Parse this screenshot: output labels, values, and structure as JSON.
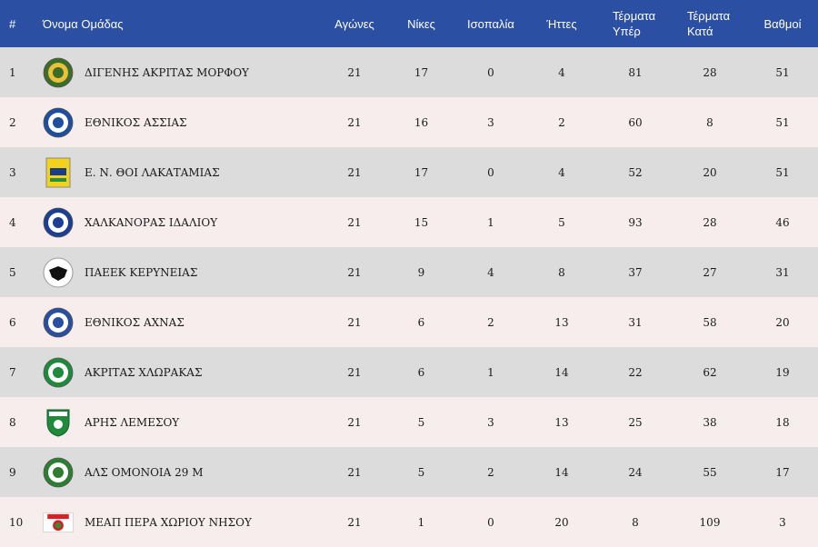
{
  "header": {
    "rank": "#",
    "team": "Όνομα Ομάδας",
    "played": "Αγώνες",
    "wins": "Νίκες",
    "draws": "Ισοπαλία",
    "losses": "Ήττες",
    "gf_line1": "Τέρματα",
    "gf_line2": "Υπέρ",
    "ga_line1": "Τέρματα",
    "ga_line2": "Κατά",
    "points": "Βαθμοί"
  },
  "rows": [
    {
      "rank": "1",
      "team": "ΔΙΓΕΝΗΣ ΑΚΡΙΤΑΣ ΜΟΡΦΟΥ",
      "played": "21",
      "wins": "17",
      "draws": "0",
      "losses": "4",
      "gf": "81",
      "ga": "28",
      "points": "51"
    },
    {
      "rank": "2",
      "team": "ΕΘΝΙΚΟΣ ΑΣΣΙΑΣ",
      "played": "21",
      "wins": "16",
      "draws": "3",
      "losses": "2",
      "gf": "60",
      "ga": "8",
      "points": "51"
    },
    {
      "rank": "3",
      "team": "Ε. Ν. ΘΟΙ ΛΑΚΑΤΑΜΙΑΣ",
      "played": "21",
      "wins": "17",
      "draws": "0",
      "losses": "4",
      "gf": "52",
      "ga": "20",
      "points": "51"
    },
    {
      "rank": "4",
      "team": "ΧΑΛΚΑΝΟΡΑΣ ΙΔΑΛΙΟΥ",
      "played": "21",
      "wins": "15",
      "draws": "1",
      "losses": "5",
      "gf": "93",
      "ga": "28",
      "points": "46"
    },
    {
      "rank": "5",
      "team": "ΠΑΕΕΚ ΚΕΡΥΝΕΙΑΣ",
      "played": "21",
      "wins": "9",
      "draws": "4",
      "losses": "8",
      "gf": "37",
      "ga": "27",
      "points": "31"
    },
    {
      "rank": "6",
      "team": "ΕΘΝΙΚΟΣ ΑΧΝΑΣ",
      "played": "21",
      "wins": "6",
      "draws": "2",
      "losses": "13",
      "gf": "31",
      "ga": "58",
      "points": "20"
    },
    {
      "rank": "7",
      "team": "ΑΚΡΙΤΑΣ ΧΛΩΡΑΚΑΣ",
      "played": "21",
      "wins": "6",
      "draws": "1",
      "losses": "14",
      "gf": "22",
      "ga": "62",
      "points": "19"
    },
    {
      "rank": "8",
      "team": "ΑΡΗΣ ΛΕΜΕΣΟΥ",
      "played": "21",
      "wins": "5",
      "draws": "3",
      "losses": "13",
      "gf": "25",
      "ga": "38",
      "points": "18"
    },
    {
      "rank": "9",
      "team": "ΑΛΣ ΟΜΟΝΟΙΑ 29 Μ",
      "played": "21",
      "wins": "5",
      "draws": "2",
      "losses": "14",
      "gf": "24",
      "ga": "55",
      "points": "17"
    },
    {
      "rank": "10",
      "team": "ΜΕΑΠ ΠΕΡΑ ΧΩΡΙΟΥ ΝΗΣΟΥ",
      "played": "21",
      "wins": "1",
      "draws": "0",
      "losses": "20",
      "gf": "8",
      "ga": "109",
      "points": "3"
    }
  ],
  "logos": [
    {
      "icon": "digenis-crest-icon",
      "color": "#3d6b2a",
      "accent": "#e8c23a"
    },
    {
      "icon": "ethnikos-assias-crest-icon",
      "color": "#1d4f9c",
      "accent": "#ffffff"
    },
    {
      "icon": "thoi-crest-icon",
      "color": "#f2d21c",
      "accent": "#1a3d8a"
    },
    {
      "icon": "chalkanoras-crest-icon",
      "color": "#1c3f94",
      "accent": "#ffffff"
    },
    {
      "icon": "paeek-crest-icon",
      "color": "#111111",
      "accent": "#ffffff"
    },
    {
      "icon": "ethnikos-achnas-crest-icon",
      "color": "#2a4fa0",
      "accent": "#ffffff"
    },
    {
      "icon": "akritas-crest-icon",
      "color": "#1f8a3c",
      "accent": "#ffffff"
    },
    {
      "icon": "aris-crest-icon",
      "color": "#1f8a3c",
      "accent": "#ffffff"
    },
    {
      "icon": "omonoia-crest-icon",
      "color": "#2e7d32",
      "accent": "#ffffff"
    },
    {
      "icon": "meap-crest-icon",
      "color": "#d71f26",
      "accent": "#ffffff"
    }
  ],
  "colors": {
    "header_bg": "#2b4fa2",
    "row_odd": "#dcdcdc",
    "row_even": "#f7eded"
  }
}
